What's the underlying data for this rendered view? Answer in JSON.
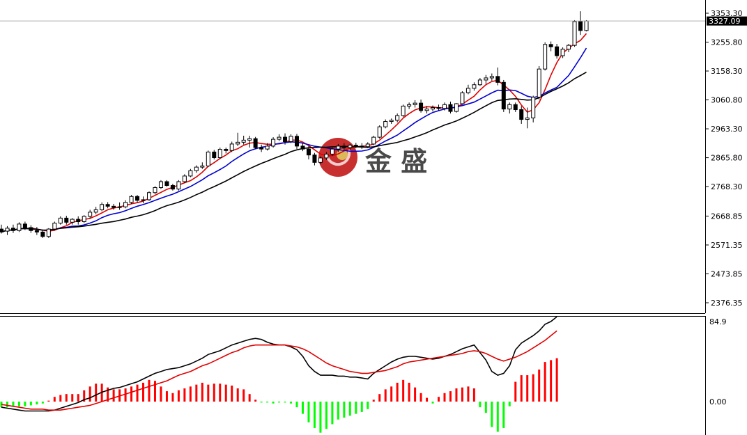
{
  "watermark": {
    "text": "金 盛"
  },
  "chart_data": [
    {
      "type": "candlestick",
      "title": "",
      "ylim": [
        2330,
        3400
      ],
      "y_ticks": [
        "3353.30",
        "3255.80",
        "3158.30",
        "3060.80",
        "2963.30",
        "2865.80",
        "2768.30",
        "2668.85",
        "2571.35",
        "2473.85",
        "2376.35"
      ],
      "y_tick_values": [
        3353.3,
        3255.8,
        3158.3,
        3060.8,
        2963.3,
        2865.8,
        2768.3,
        2668.85,
        2571.35,
        2473.85,
        2376.35
      ],
      "current_price": "3327.09",
      "current_value": 3327.09,
      "candles": [
        [
          2625,
          2640,
          2610,
          2615
        ],
        [
          2618,
          2635,
          2605,
          2628
        ],
        [
          2628,
          2640,
          2612,
          2620
        ],
        [
          2620,
          2648,
          2615,
          2642
        ],
        [
          2642,
          2650,
          2622,
          2630
        ],
        [
          2630,
          2638,
          2612,
          2620
        ],
        [
          2620,
          2632,
          2605,
          2615
        ],
        [
          2615,
          2622,
          2595,
          2600
        ],
        [
          2600,
          2628,
          2595,
          2625
        ],
        [
          2625,
          2650,
          2620,
          2645
        ],
        [
          2645,
          2668,
          2640,
          2662
        ],
        [
          2662,
          2670,
          2640,
          2648
        ],
        [
          2648,
          2662,
          2640,
          2658
        ],
        [
          2658,
          2668,
          2640,
          2650
        ],
        [
          2650,
          2672,
          2645,
          2668
        ],
        [
          2668,
          2690,
          2660,
          2682
        ],
        [
          2682,
          2700,
          2675,
          2690
        ],
        [
          2690,
          2715,
          2685,
          2708
        ],
        [
          2708,
          2716,
          2695,
          2702
        ],
        [
          2702,
          2710,
          2690,
          2698
        ],
        [
          2698,
          2715,
          2690,
          2700
        ],
        [
          2700,
          2722,
          2695,
          2715
        ],
        [
          2715,
          2740,
          2710,
          2735
        ],
        [
          2735,
          2740,
          2715,
          2722
        ],
        [
          2722,
          2735,
          2712,
          2724
        ],
        [
          2724,
          2752,
          2720,
          2748
        ],
        [
          2748,
          2770,
          2742,
          2765
        ],
        [
          2765,
          2790,
          2760,
          2785
        ],
        [
          2785,
          2790,
          2768,
          2772
        ],
        [
          2772,
          2778,
          2755,
          2760
        ],
        [
          2760,
          2790,
          2755,
          2785
        ],
        [
          2785,
          2810,
          2780,
          2804
        ],
        [
          2804,
          2828,
          2800,
          2822
        ],
        [
          2822,
          2840,
          2815,
          2834
        ],
        [
          2834,
          2850,
          2828,
          2838
        ],
        [
          2838,
          2890,
          2835,
          2885
        ],
        [
          2885,
          2892,
          2860,
          2866
        ],
        [
          2866,
          2900,
          2862,
          2894
        ],
        [
          2894,
          2900,
          2880,
          2890
        ],
        [
          2890,
          2920,
          2885,
          2912
        ],
        [
          2912,
          2950,
          2905,
          2918
        ],
        [
          2918,
          2940,
          2910,
          2925
        ],
        [
          2925,
          2940,
          2900,
          2930
        ],
        [
          2930,
          2936,
          2895,
          2900
        ],
        [
          2900,
          2910,
          2885,
          2895
        ],
        [
          2895,
          2915,
          2890,
          2905
        ],
        [
          2905,
          2935,
          2900,
          2928
        ],
        [
          2928,
          2945,
          2922,
          2935
        ],
        [
          2935,
          2948,
          2910,
          2920
        ],
        [
          2920,
          2945,
          2915,
          2938
        ],
        [
          2938,
          2946,
          2895,
          2905
        ],
        [
          2905,
          2915,
          2888,
          2895
        ],
        [
          2895,
          2905,
          2860,
          2875
        ],
        [
          2875,
          2882,
          2840,
          2850
        ],
        [
          2850,
          2870,
          2845,
          2865
        ],
        [
          2865,
          2885,
          2858,
          2878
        ],
        [
          2878,
          2900,
          2872,
          2895
        ],
        [
          2895,
          2912,
          2885,
          2905
        ],
        [
          2905,
          2915,
          2893,
          2900
        ],
        [
          2900,
          2912,
          2892,
          2908
        ],
        [
          2908,
          2916,
          2898,
          2905
        ],
        [
          2905,
          2915,
          2895,
          2903
        ],
        [
          2903,
          2918,
          2898,
          2912
        ],
        [
          2912,
          2940,
          2908,
          2935
        ],
        [
          2935,
          2975,
          2930,
          2970
        ],
        [
          2970,
          2995,
          2965,
          2988
        ],
        [
          2988,
          2998,
          2980,
          2992
        ],
        [
          2992,
          3015,
          2985,
          3008
        ],
        [
          3008,
          3045,
          3003,
          3040
        ],
        [
          3040,
          3052,
          3030,
          3045
        ],
        [
          3045,
          3060,
          3035,
          3050
        ],
        [
          3050,
          3062,
          3018,
          3025
        ],
        [
          3025,
          3040,
          3015,
          3030
        ],
        [
          3030,
          3042,
          3022,
          3035
        ],
        [
          3035,
          3045,
          3025,
          3032
        ],
        [
          3032,
          3052,
          3025,
          3045
        ],
        [
          3045,
          3055,
          3015,
          3022
        ],
        [
          3022,
          3050,
          3018,
          3048
        ],
        [
          3048,
          3090,
          3045,
          3085
        ],
        [
          3085,
          3112,
          3080,
          3100
        ],
        [
          3100,
          3120,
          3092,
          3112
        ],
        [
          3112,
          3135,
          3108,
          3128
        ],
        [
          3128,
          3145,
          3115,
          3135
        ],
        [
          3135,
          3150,
          3125,
          3140
        ],
        [
          3140,
          3170,
          3110,
          3120
        ],
        [
          3120,
          3128,
          3020,
          3030
        ],
        [
          3030,
          3052,
          3015,
          3045
        ],
        [
          3045,
          3052,
          3020,
          3028
        ],
        [
          3028,
          3040,
          2980,
          2995
        ],
        [
          2995,
          3035,
          2965,
          3000
        ],
        [
          3000,
          3075,
          2985,
          3070
        ],
        [
          3070,
          3175,
          3062,
          3165
        ],
        [
          3165,
          3255,
          3160,
          3248
        ],
        [
          3248,
          3258,
          3225,
          3240
        ],
        [
          3240,
          3250,
          3200,
          3210
        ],
        [
          3210,
          3238,
          3202,
          3232
        ],
        [
          3232,
          3250,
          3222,
          3245
        ],
        [
          3245,
          3330,
          3240,
          3325
        ],
        [
          3325,
          3360,
          3280,
          3295
        ],
        [
          3295,
          3330,
          3292,
          3327
        ]
      ],
      "series": [
        {
          "color": "#e00000"
        },
        {
          "color": "#0000d0"
        },
        {
          "color": "#000000"
        }
      ]
    },
    {
      "type": "bar+line",
      "title": "",
      "ylim": [
        -45,
        95
      ],
      "y_ticks": [
        "84.9",
        "0.00"
      ],
      "y_tick_values": [
        84.9,
        0
      ],
      "histogram": [
        -6,
        -6,
        -5,
        -5,
        -5,
        -4,
        -3,
        -2,
        1,
        5,
        7,
        8,
        8,
        8,
        12,
        16,
        19,
        19,
        15,
        13,
        13,
        14,
        16,
        18,
        20,
        23,
        22,
        16,
        11,
        9,
        12,
        14,
        16,
        18,
        20,
        18,
        19,
        19,
        18,
        17,
        14,
        13,
        8,
        2,
        -1,
        -1,
        -2,
        -1,
        -1,
        -2,
        -6,
        -13,
        -22,
        -28,
        -33,
        -29,
        -24,
        -19,
        -17,
        -15,
        -13,
        -11,
        -8,
        2,
        8,
        13,
        16,
        20,
        23,
        20,
        15,
        9,
        4,
        -2,
        5,
        9,
        11,
        14,
        15,
        16,
        14,
        -6,
        -12,
        -27,
        -32,
        -28,
        -5,
        21,
        28,
        28,
        29,
        34,
        42,
        44,
        46
      ],
      "series": [
        {
          "color": "#000000",
          "values": [
            -6,
            -7,
            -8,
            -9,
            -10,
            -10,
            -10,
            -10,
            -10,
            -9,
            -7,
            -5,
            -3,
            -1,
            2,
            4,
            7,
            10,
            12,
            14,
            15,
            17,
            19,
            21,
            24,
            27,
            30,
            32,
            34,
            35,
            36,
            38,
            40,
            43,
            46,
            50,
            52,
            54,
            57,
            60,
            62,
            64,
            66,
            67,
            66,
            63,
            61,
            60,
            60,
            58,
            55,
            48,
            38,
            32,
            28,
            28,
            28,
            27,
            27,
            26,
            26,
            25,
            24,
            30,
            34,
            38,
            42,
            45,
            47,
            48,
            48,
            47,
            46,
            45,
            46,
            48,
            50,
            53,
            56,
            58,
            60,
            52,
            44,
            32,
            28,
            30,
            38,
            55,
            62,
            66,
            70,
            75,
            82,
            85,
            90
          ]
        },
        {
          "color": "#e00000",
          "values": [
            -3,
            -4,
            -5,
            -6,
            -7,
            -8,
            -8,
            -8,
            -9,
            -9,
            -9,
            -8,
            -7,
            -6,
            -5,
            -4,
            -2,
            0,
            2,
            4,
            6,
            8,
            10,
            12,
            14,
            16,
            18,
            20,
            22,
            25,
            28,
            30,
            32,
            35,
            38,
            40,
            43,
            46,
            49,
            52,
            54,
            57,
            59,
            60,
            60,
            60,
            60,
            60,
            60,
            59,
            58,
            56,
            53,
            49,
            45,
            41,
            38,
            36,
            34,
            32,
            31,
            30,
            30,
            31,
            32,
            33,
            35,
            37,
            40,
            42,
            43,
            44,
            45,
            46,
            47,
            48,
            49,
            50,
            51,
            53,
            54,
            53,
            51,
            48,
            45,
            43,
            45,
            47,
            50,
            53,
            57,
            61,
            65,
            70,
            75
          ]
        }
      ]
    }
  ]
}
